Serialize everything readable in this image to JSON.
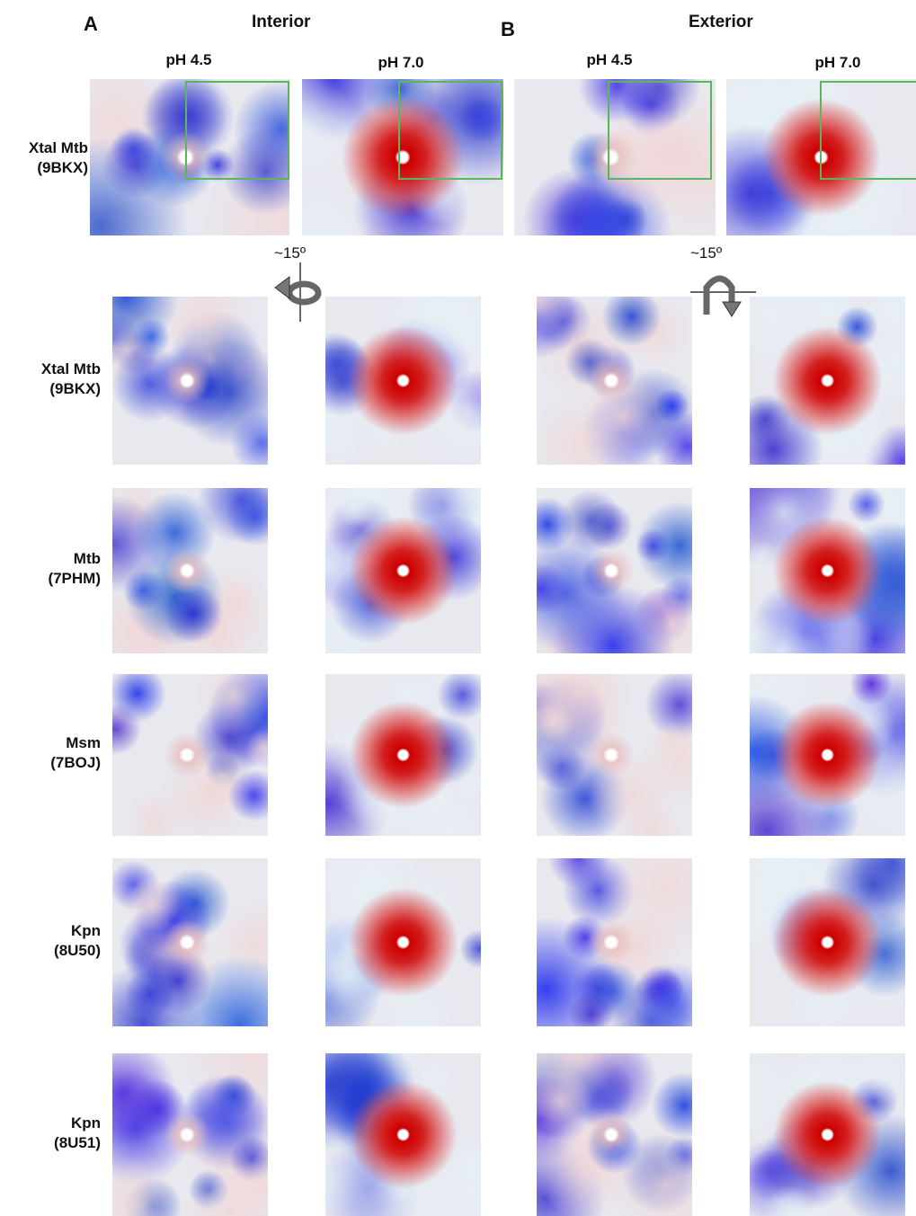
{
  "panels": [
    {
      "letter": "A",
      "title": "Interior",
      "columns": [
        "pH 4.5",
        "pH 7.0"
      ]
    },
    {
      "letter": "B",
      "title": "Exterior",
      "columns": [
        "pH 4.5",
        "pH 7.0"
      ]
    }
  ],
  "rotation_labels": [
    "~15º",
    "~15º"
  ],
  "rows": [
    {
      "name": "Xtal Mtb",
      "code": "(9BKX)"
    },
    {
      "name": "Xtal Mtb",
      "code": "(9BKX)"
    },
    {
      "name": "Mtb",
      "code": "(7PHM)"
    },
    {
      "name": "Msm",
      "code": "(7BOJ)"
    },
    {
      "name": "Kpn",
      "code": "(8U50)"
    },
    {
      "name": "Kpn",
      "code": "(8U51)"
    }
  ]
}
